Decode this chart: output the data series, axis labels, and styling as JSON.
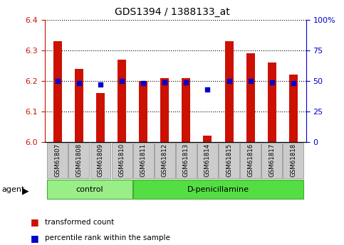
{
  "title": "GDS1394 / 1388133_at",
  "samples": [
    "GSM61807",
    "GSM61808",
    "GSM61809",
    "GSM61810",
    "GSM61811",
    "GSM61812",
    "GSM61813",
    "GSM61814",
    "GSM61815",
    "GSM61816",
    "GSM61817",
    "GSM61818"
  ],
  "transformed_count": [
    6.33,
    6.24,
    6.16,
    6.27,
    6.2,
    6.21,
    6.21,
    6.02,
    6.33,
    6.29,
    6.26,
    6.22
  ],
  "percentile_rank": [
    50,
    48,
    47,
    50,
    48,
    49,
    49,
    43,
    50,
    50,
    49,
    48
  ],
  "n_control": 4,
  "ylim_left": [
    6.0,
    6.4
  ],
  "ylim_right": [
    0,
    100
  ],
  "yticks_left": [
    6.0,
    6.1,
    6.2,
    6.3,
    6.4
  ],
  "yticks_right": [
    0,
    25,
    50,
    75,
    100
  ],
  "bar_color": "#CC1100",
  "dot_color": "#0000CC",
  "control_color": "#99EE88",
  "treatment_color": "#55DD44",
  "grid_color": "#000000",
  "tick_area_color": "#CCCCCC",
  "legend_bar_label": "transformed count",
  "legend_dot_label": "percentile rank within the sample",
  "agent_label": "agent",
  "control_label": "control",
  "treatment_label": "D-penicillamine"
}
